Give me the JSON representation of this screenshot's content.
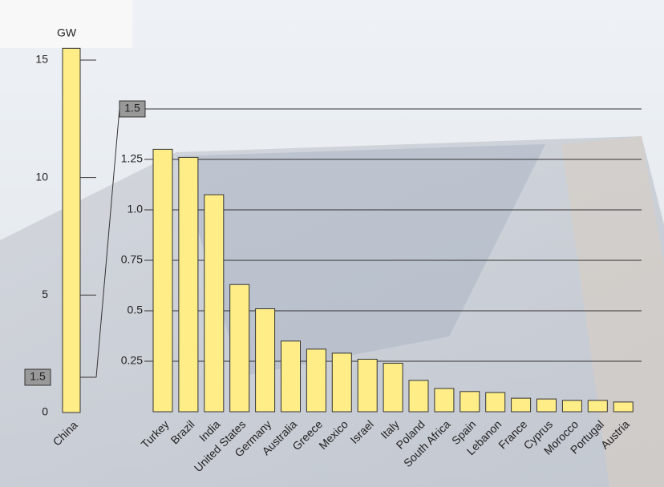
{
  "chart_data": [
    {
      "type": "bar",
      "y_label": "GW",
      "categories": [
        "China"
      ],
      "values": [
        15.5
      ],
      "color": "#ffee88",
      "ylim": [
        0,
        15
      ],
      "yticks": [
        0,
        1.5,
        5,
        10,
        15
      ]
    },
    {
      "type": "bar",
      "categories": [
        "Turkey",
        "Brazil",
        "India",
        "United States",
        "Germany",
        "Australia",
        "Greece",
        "Mexico",
        "Israel",
        "Italy",
        "Poland",
        "South Africa",
        "Spain",
        "Lebanon",
        "France",
        "Cyprus",
        "Morocco",
        "Portugal",
        "Austria"
      ],
      "values": [
        1.3,
        1.26,
        1.075,
        0.63,
        0.51,
        0.35,
        0.31,
        0.29,
        0.26,
        0.24,
        0.155,
        0.115,
        0.1,
        0.095,
        0.067,
        0.063,
        0.056,
        0.056,
        0.048
      ],
      "color": "#ffee88",
      "ylim": [
        0,
        1.5
      ],
      "yticks": [
        0.25,
        0.5,
        0.75,
        {
          "value": 1,
          "label": "1.0"
        },
        1.25,
        1.5
      ],
      "grid": true
    }
  ]
}
